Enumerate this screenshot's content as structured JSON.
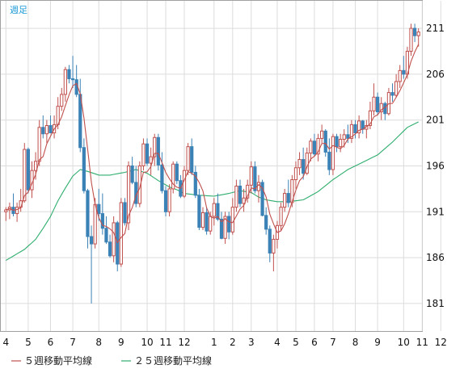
{
  "period_label": "週足",
  "chart_data": {
    "type": "candlestick",
    "ylim": [
      178,
      214
    ],
    "yticks": [
      181,
      186,
      191,
      196,
      201,
      206,
      211
    ],
    "x_tick_labels": [
      "4",
      "5",
      "6",
      "7",
      "8",
      "9",
      "10",
      "11",
      "12",
      "1",
      "2",
      "3",
      "4",
      "5",
      "6",
      "7",
      "8",
      "9",
      "10",
      "11",
      "12"
    ],
    "x_tick_weeks": [
      0,
      6,
      12,
      18,
      25,
      31,
      38,
      43,
      48,
      56,
      61,
      66,
      73,
      78,
      83,
      88,
      94,
      100,
      107,
      112,
      117
    ],
    "colors": {
      "up": "#c0504d",
      "down": "#3b82b6",
      "ma5": "#c0504d",
      "ma25": "#2fae6e",
      "grid": "#dcdcdc",
      "frame": "#a0a0a0"
    },
    "candles": [
      [
        191.0,
        191.5,
        190.0,
        191.2
      ],
      [
        191.2,
        192.0,
        190.2,
        191.5
      ],
      [
        191.5,
        193.0,
        190.5,
        190.8
      ],
      [
        190.8,
        192.0,
        189.9,
        191.5
      ],
      [
        191.5,
        193.5,
        191.0,
        192.2
      ],
      [
        192.2,
        198.5,
        192.0,
        197.8
      ],
      [
        197.8,
        198.0,
        193.0,
        193.4
      ],
      [
        193.4,
        196.5,
        192.5,
        195.5
      ],
      [
        195.5,
        197.5,
        194.5,
        196.5
      ],
      [
        196.5,
        201.0,
        196.0,
        200.2
      ],
      [
        200.2,
        201.5,
        199.0,
        199.5
      ],
      [
        199.5,
        201.0,
        198.5,
        200.4
      ],
      [
        200.4,
        201.5,
        199.6,
        199.6
      ],
      [
        199.6,
        201.5,
        199.0,
        200.5
      ],
      [
        200.5,
        203.5,
        200.0,
        202.5
      ],
      [
        202.5,
        204.5,
        202.0,
        203.8
      ],
      [
        203.8,
        206.8,
        203.0,
        206.5
      ],
      [
        206.5,
        207.0,
        205.0,
        205.5
      ],
      [
        205.5,
        208.0,
        204.5,
        205.4
      ],
      [
        205.4,
        207.0,
        203.5,
        203.8
      ],
      [
        203.8,
        205.5,
        197.5,
        198.0
      ],
      [
        198.0,
        199.0,
        193.0,
        193.3
      ],
      [
        193.3,
        193.5,
        187.0,
        188.3
      ],
      [
        188.3,
        189.5,
        181.0,
        187.5
      ],
      [
        187.5,
        192.5,
        187.0,
        191.8
      ],
      [
        191.8,
        193.5,
        190.0,
        190.8
      ],
      [
        190.8,
        193.0,
        188.5,
        189.2
      ],
      [
        189.2,
        190.5,
        187.5,
        187.7
      ],
      [
        187.7,
        188.5,
        186.0,
        186.2
      ],
      [
        186.2,
        190.5,
        185.5,
        189.8
      ],
      [
        189.8,
        190.0,
        184.5,
        185.3
      ],
      [
        185.3,
        192.5,
        185.0,
        192.0
      ],
      [
        192.0,
        192.5,
        189.5,
        189.8
      ],
      [
        189.8,
        196.5,
        189.0,
        196.0
      ],
      [
        196.0,
        197.0,
        194.0,
        194.2
      ],
      [
        194.2,
        196.0,
        191.5,
        191.9
      ],
      [
        191.9,
        196.5,
        191.5,
        196.0
      ],
      [
        196.0,
        199.0,
        195.5,
        198.4
      ],
      [
        198.4,
        199.0,
        196.0,
        196.3
      ],
      [
        196.3,
        198.0,
        195.0,
        197.0
      ],
      [
        197.0,
        199.5,
        196.0,
        199.1
      ],
      [
        199.1,
        199.5,
        195.5,
        196.1
      ],
      [
        196.1,
        197.5,
        193.0,
        193.3
      ],
      [
        193.3,
        193.8,
        190.5,
        191.0
      ],
      [
        191.0,
        194.0,
        190.5,
        193.5
      ],
      [
        193.5,
        196.5,
        193.0,
        196.2
      ],
      [
        196.2,
        196.5,
        194.0,
        194.4
      ],
      [
        194.4,
        195.0,
        192.5,
        192.7
      ],
      [
        192.7,
        196.0,
        192.5,
        195.5
      ],
      [
        195.5,
        198.5,
        195.0,
        198.1
      ],
      [
        198.1,
        199.0,
        195.0,
        195.3
      ],
      [
        195.3,
        196.0,
        192.5,
        192.8
      ],
      [
        192.8,
        193.5,
        189.0,
        189.3
      ],
      [
        189.3,
        191.5,
        189.0,
        190.9
      ],
      [
        190.9,
        191.5,
        188.5,
        188.9
      ],
      [
        188.9,
        191.0,
        188.5,
        190.5
      ],
      [
        190.5,
        192.5,
        189.5,
        191.9
      ],
      [
        191.9,
        193.0,
        190.0,
        190.2
      ],
      [
        190.2,
        191.0,
        188.0,
        188.1
      ],
      [
        188.1,
        191.0,
        187.5,
        190.5
      ],
      [
        190.5,
        191.0,
        188.0,
        188.8
      ],
      [
        188.8,
        192.5,
        188.5,
        191.5
      ],
      [
        191.5,
        194.5,
        191.0,
        193.8
      ],
      [
        193.8,
        194.5,
        191.5,
        191.9
      ],
      [
        191.9,
        193.5,
        191.0,
        192.5
      ],
      [
        192.5,
        194.5,
        192.0,
        193.9
      ],
      [
        193.9,
        196.5,
        193.0,
        195.9
      ],
      [
        195.9,
        196.5,
        193.0,
        193.3
      ],
      [
        193.3,
        195.0,
        192.0,
        194.2
      ],
      [
        194.2,
        194.5,
        190.5,
        190.6
      ],
      [
        190.6,
        191.5,
        188.5,
        189.1
      ],
      [
        189.1,
        189.5,
        185.5,
        186.5
      ],
      [
        186.5,
        188.5,
        184.5,
        188.0
      ],
      [
        188.0,
        190.0,
        187.0,
        189.5
      ],
      [
        189.5,
        192.0,
        189.0,
        191.5
      ],
      [
        191.5,
        193.5,
        191.0,
        193.0
      ],
      [
        193.0,
        194.5,
        191.5,
        192.0
      ],
      [
        192.0,
        195.0,
        191.5,
        194.5
      ],
      [
        194.5,
        196.5,
        193.5,
        195.8
      ],
      [
        195.8,
        197.5,
        195.0,
        196.7
      ],
      [
        196.7,
        198.0,
        194.5,
        195.2
      ],
      [
        195.2,
        198.0,
        195.0,
        197.4
      ],
      [
        197.4,
        199.0,
        196.5,
        198.7
      ],
      [
        198.7,
        199.5,
        197.0,
        197.3
      ],
      [
        197.3,
        199.5,
        196.5,
        199.0
      ],
      [
        199.0,
        200.5,
        198.5,
        199.8
      ],
      [
        199.8,
        200.0,
        197.0,
        197.5
      ],
      [
        197.5,
        199.0,
        195.0,
        195.6
      ],
      [
        195.6,
        199.5,
        195.0,
        199.2
      ],
      [
        199.2,
        199.5,
        197.5,
        198.1
      ],
      [
        198.1,
        199.5,
        197.5,
        198.9
      ],
      [
        198.9,
        200.0,
        198.0,
        199.4
      ],
      [
        199.4,
        200.5,
        198.5,
        199.0
      ],
      [
        199.0,
        201.0,
        198.5,
        200.5
      ],
      [
        200.5,
        201.0,
        199.0,
        199.6
      ],
      [
        199.6,
        201.5,
        199.0,
        200.9
      ],
      [
        200.9,
        201.0,
        199.5,
        200.0
      ],
      [
        200.0,
        201.0,
        199.0,
        200.4
      ],
      [
        200.4,
        203.0,
        200.0,
        202.0
      ],
      [
        202.0,
        205.0,
        201.5,
        203.5
      ],
      [
        203.5,
        204.0,
        201.5,
        201.9
      ],
      [
        201.9,
        203.5,
        201.0,
        202.8
      ],
      [
        202.8,
        203.0,
        201.0,
        201.7
      ],
      [
        201.7,
        204.5,
        201.5,
        204.0
      ],
      [
        204.0,
        205.0,
        203.0,
        203.7
      ],
      [
        203.7,
        206.0,
        203.5,
        205.2
      ],
      [
        205.2,
        207.0,
        204.5,
        206.4
      ],
      [
        206.4,
        208.0,
        205.5,
        206.0
      ],
      [
        206.0,
        209.0,
        205.5,
        208.5
      ],
      [
        208.5,
        211.5,
        208.0,
        211.0
      ],
      [
        211.0,
        211.5,
        209.5,
        210.2
      ],
      [
        210.2,
        211.0,
        209.0,
        210.6
      ]
    ],
    "ma25_anchors": [
      [
        0,
        185.7
      ],
      [
        5,
        186.9
      ],
      [
        8,
        188.0
      ],
      [
        10,
        189.2
      ],
      [
        12,
        190.5
      ],
      [
        14,
        192.2
      ],
      [
        16,
        193.6
      ],
      [
        18,
        194.9
      ],
      [
        20,
        195.6
      ],
      [
        22,
        195.4
      ],
      [
        25,
        195.0
      ],
      [
        28,
        195.0
      ],
      [
        32,
        195.3
      ],
      [
        35,
        195.6
      ],
      [
        38,
        195.2
      ],
      [
        41,
        194.4
      ],
      [
        44,
        193.7
      ],
      [
        46,
        193.4
      ],
      [
        48,
        193.0
      ],
      [
        52,
        192.8
      ],
      [
        56,
        192.7
      ],
      [
        60,
        193.0
      ],
      [
        63,
        193.3
      ],
      [
        66,
        193.1
      ],
      [
        68,
        192.6
      ],
      [
        70,
        192.3
      ],
      [
        73,
        192.1
      ],
      [
        76,
        192.1
      ],
      [
        80,
        192.3
      ],
      [
        84,
        193.2
      ],
      [
        88,
        194.5
      ],
      [
        92,
        195.6
      ],
      [
        96,
        196.4
      ],
      [
        100,
        197.2
      ],
      [
        104,
        198.6
      ],
      [
        108,
        200.2
      ],
      [
        112,
        201.0
      ],
      [
        115,
        202.0
      ],
      [
        117,
        203.3
      ],
      [
        119,
        204.1
      ]
    ],
    "legend": [
      {
        "label": "５週移動平均線",
        "series": "ma5"
      },
      {
        "label": "２５週移動平均線",
        "series": "ma25"
      }
    ]
  }
}
